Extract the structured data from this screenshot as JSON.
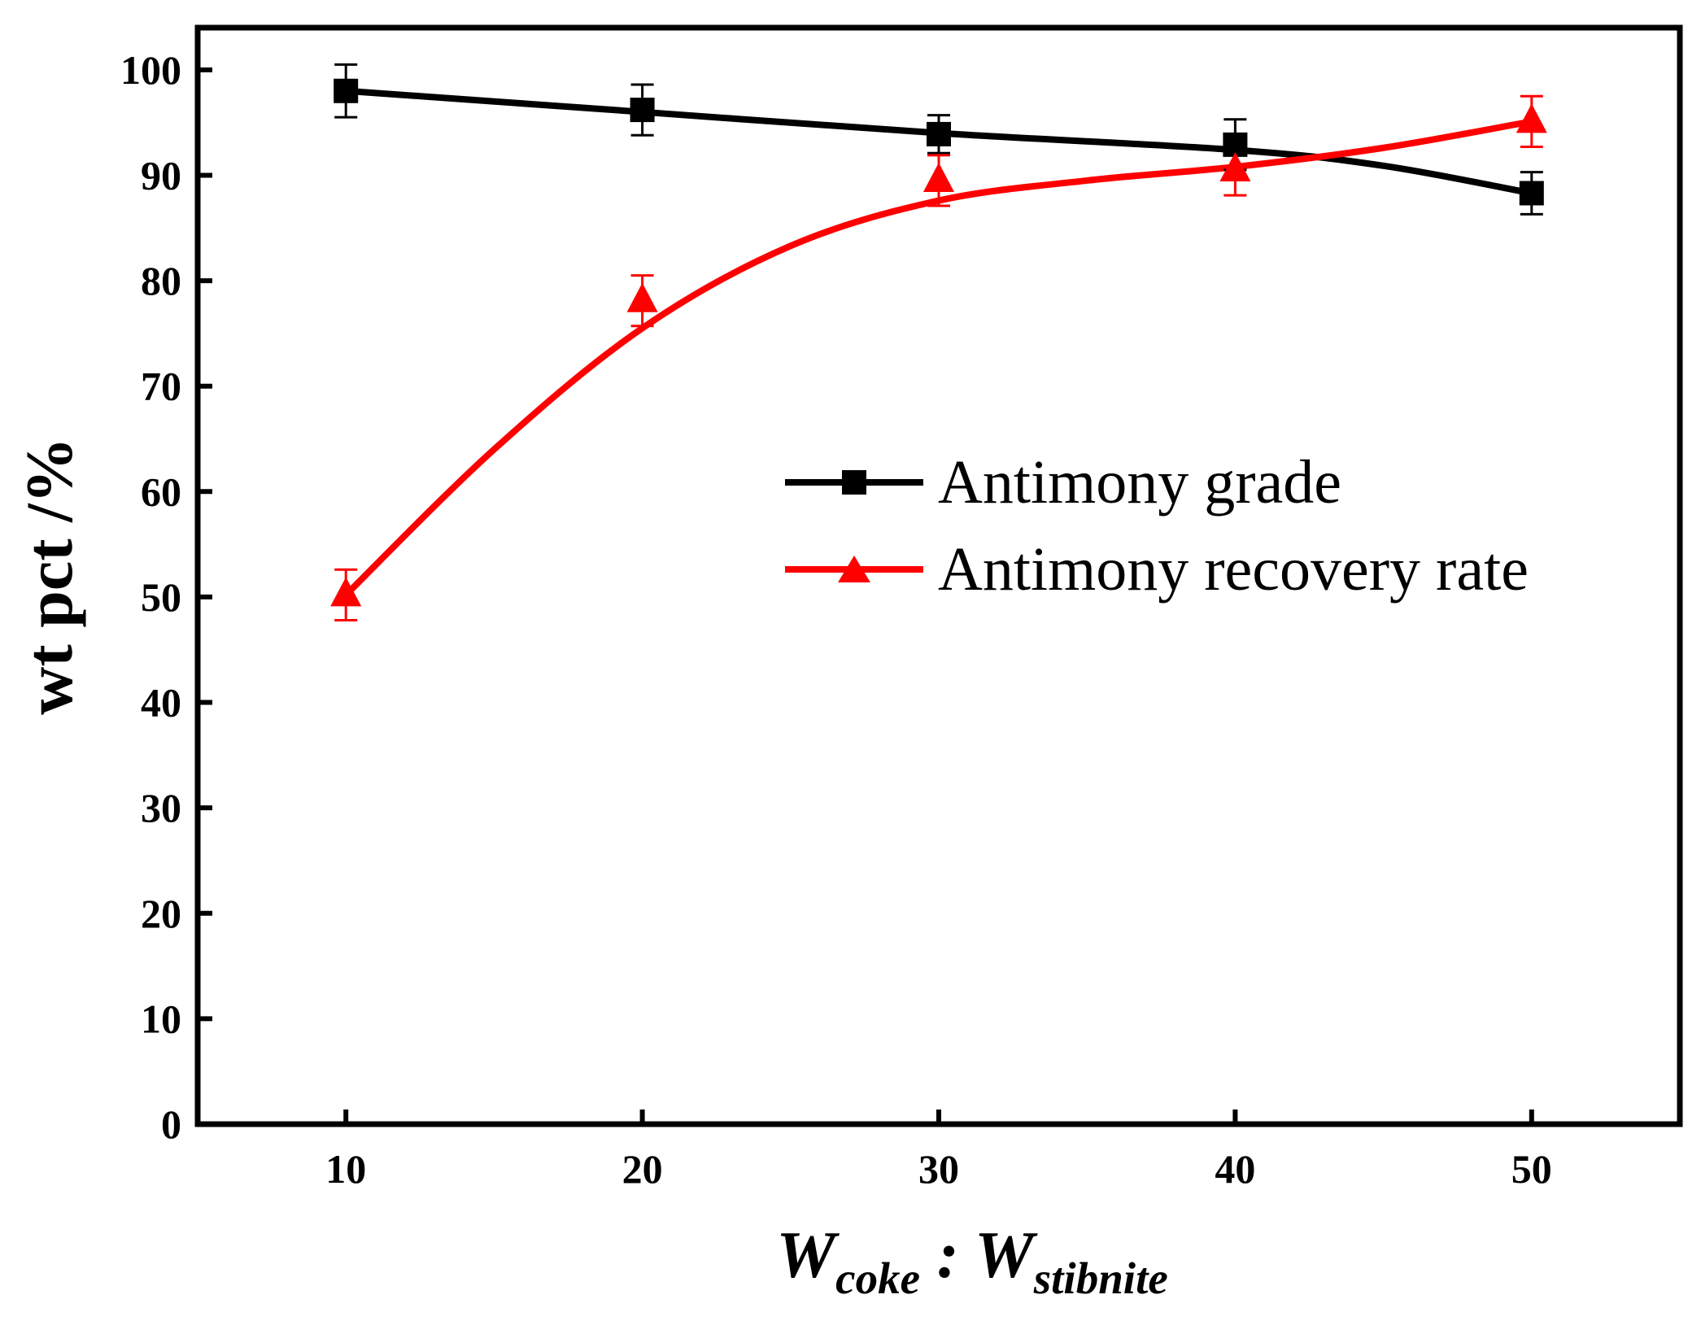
{
  "chart_data": {
    "type": "line",
    "title": "",
    "xlabel": {
      "main": "W",
      "sub1": "coke",
      "sep": " : ",
      "main2": "W",
      "sub2": "stibnite"
    },
    "ylabel": "wt pct /%",
    "x": [
      10,
      20,
      30,
      40,
      50
    ],
    "xlim": [
      5,
      55
    ],
    "ylim": [
      0,
      104
    ],
    "xticks": [
      10,
      20,
      30,
      40,
      50
    ],
    "yticks": [
      0,
      10,
      20,
      30,
      40,
      50,
      60,
      70,
      80,
      90,
      100
    ],
    "grid": false,
    "legend_position": "center-right",
    "series": [
      {
        "name": "Antimony grade",
        "color": "#000000",
        "marker": "square",
        "values": [
          98.0,
          96.2,
          93.9,
          92.9,
          88.3
        ],
        "errors": [
          2.5,
          2.4,
          1.8,
          2.4,
          2.0
        ],
        "fit": "linear-like"
      },
      {
        "name": "Antimony recovery rate",
        "color": "#ff0000",
        "marker": "triangle",
        "values": [
          50.2,
          78.1,
          89.5,
          90.5,
          95.1
        ],
        "errors": [
          2.4,
          2.4,
          2.4,
          2.4,
          2.4
        ],
        "fit": "smooth-curve"
      }
    ]
  }
}
